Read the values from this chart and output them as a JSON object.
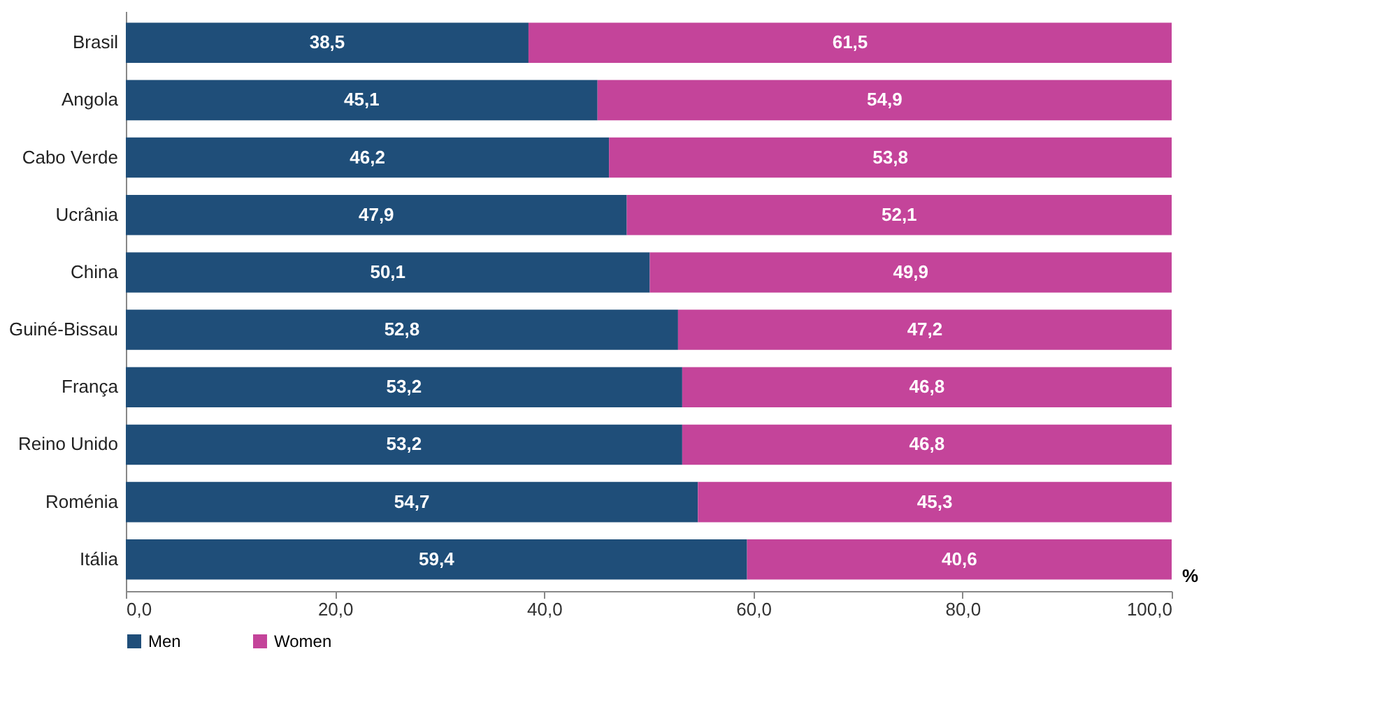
{
  "chart_data": {
    "type": "bar",
    "orientation": "horizontal",
    "stacked": true,
    "xlabel": "%",
    "categories": [
      "Brasil",
      "Angola",
      "Cabo Verde",
      "Ucrânia",
      "China",
      "Guiné-Bissau",
      "França",
      "Reino Unido",
      "Roménia",
      "Itália"
    ],
    "series": [
      {
        "name": "Men",
        "color": "#1f4e79",
        "values": [
          38.5,
          45.1,
          46.2,
          47.9,
          50.1,
          52.8,
          53.2,
          53.2,
          54.7,
          59.4
        ],
        "value_labels": [
          "38,5",
          "45,1",
          "46,2",
          "47,9",
          "50,1",
          "52,8",
          "53,2",
          "53,2",
          "54,7",
          "59,4"
        ]
      },
      {
        "name": "Women",
        "color": "#c4449a",
        "values": [
          61.5,
          54.9,
          53.8,
          52.1,
          49.9,
          47.2,
          46.8,
          46.8,
          45.3,
          40.6
        ],
        "value_labels": [
          "61,5",
          "54,9",
          "53,8",
          "52,1",
          "49,9",
          "47,2",
          "46,8",
          "46,8",
          "45,3",
          "40,6"
        ]
      }
    ],
    "xlim": [
      0,
      100
    ],
    "xticks": [
      {
        "value": 0,
        "label": "0,0"
      },
      {
        "value": 20,
        "label": "20,0"
      },
      {
        "value": 40,
        "label": "40,0"
      },
      {
        "value": 60,
        "label": "60,0"
      },
      {
        "value": 80,
        "label": "80,0"
      },
      {
        "value": 100,
        "label": "100,0"
      }
    ],
    "legend": "bottom",
    "grid": false
  }
}
